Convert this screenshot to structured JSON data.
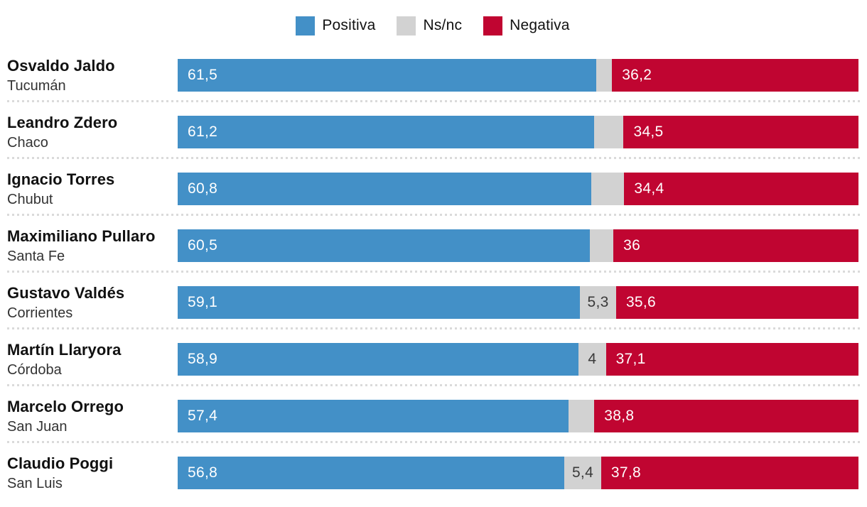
{
  "legend": {
    "items": [
      {
        "label": "Positiva",
        "color": "#4390c7"
      },
      {
        "label": "Ns/nc",
        "color": "#d2d2d2"
      },
      {
        "label": "Negativa",
        "color": "#c00531"
      }
    ]
  },
  "colors": {
    "positiva": "#4390c7",
    "ns_nc": "#d2d2d2",
    "negativa": "#c00531",
    "separator": "#dadada",
    "name_text": "#111111",
    "province_text": "#333333",
    "bar_value_text": "#ffffff",
    "ns_value_text": "#3a3a3a"
  },
  "chart_data": {
    "type": "bar",
    "orientation": "horizontal",
    "stacked": true,
    "series_names": [
      "Positiva",
      "Ns/nc",
      "Negativa"
    ],
    "axis_range_percent": [
      0,
      100
    ],
    "grid": false,
    "legend_position": "top-center",
    "rows": [
      {
        "name": "Osvaldo Jaldo",
        "province": "Tucumán",
        "positiva": 61.5,
        "ns_nc": 2.3,
        "negativa": 36.2,
        "positiva_label": "61,5",
        "ns_label": "",
        "negativa_label": "36,2"
      },
      {
        "name": "Leandro Zdero",
        "province": "Chaco",
        "positiva": 61.2,
        "ns_nc": 4.3,
        "negativa": 34.5,
        "positiva_label": "61,2",
        "ns_label": "",
        "negativa_label": "34,5"
      },
      {
        "name": "Ignacio Torres",
        "province": "Chubut",
        "positiva": 60.8,
        "ns_nc": 4.8,
        "negativa": 34.4,
        "positiva_label": "60,8",
        "ns_label": "",
        "negativa_label": "34,4"
      },
      {
        "name": "Maximiliano Pullaro",
        "province": "Santa Fe",
        "positiva": 60.5,
        "ns_nc": 3.5,
        "negativa": 36.0,
        "positiva_label": "60,5",
        "ns_label": "",
        "negativa_label": "36"
      },
      {
        "name": "Gustavo Valdés",
        "province": "Corrientes",
        "positiva": 59.1,
        "ns_nc": 5.3,
        "negativa": 35.6,
        "positiva_label": "59,1",
        "ns_label": "5,3",
        "negativa_label": "35,6"
      },
      {
        "name": "Martín Llaryora",
        "province": "Córdoba",
        "positiva": 58.9,
        "ns_nc": 4.0,
        "negativa": 37.1,
        "positiva_label": "58,9",
        "ns_label": "4",
        "negativa_label": "37,1"
      },
      {
        "name": "Marcelo Orrego",
        "province": "San Juan",
        "positiva": 57.4,
        "ns_nc": 3.8,
        "negativa": 38.8,
        "positiva_label": "57,4",
        "ns_label": "",
        "negativa_label": "38,8"
      },
      {
        "name": "Claudio Poggi",
        "province": "San Luis",
        "positiva": 56.8,
        "ns_nc": 5.4,
        "negativa": 37.8,
        "positiva_label": "56,8",
        "ns_label": "5,4",
        "negativa_label": "37,8"
      }
    ]
  }
}
